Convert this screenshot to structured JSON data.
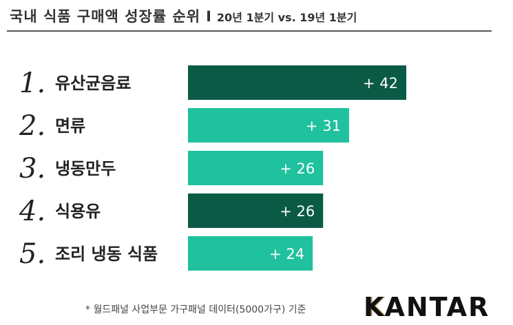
{
  "header": {
    "title": "국내 식품 구매액 성장률 순위",
    "separator": "I",
    "subtitle": "20년 1분기 vs. 19년 1분기"
  },
  "chart_data": {
    "type": "bar",
    "orientation": "horizontal",
    "ranks": [
      "1.",
      "2.",
      "3.",
      "4.",
      "5."
    ],
    "categories": [
      "유산균음료",
      "면류",
      "냉동만두",
      "식용유",
      "조리 냉동 식품"
    ],
    "values": [
      42,
      31,
      26,
      26,
      24
    ],
    "value_labels": [
      "+ 42",
      "+ 31",
      "+ 26",
      "+ 26",
      "+ 24"
    ],
    "bar_colors": [
      "#0b5a45",
      "#1fc19e",
      "#1fc19e",
      "#0b5a45",
      "#1fc19e"
    ],
    "xlim": [
      0,
      42
    ]
  },
  "footnote": "* 월드패널 사업부문 가구패널 데이터(5000가구) 기준",
  "logo": {
    "text": "KANTAR",
    "accent_color": "#b9a46a"
  }
}
